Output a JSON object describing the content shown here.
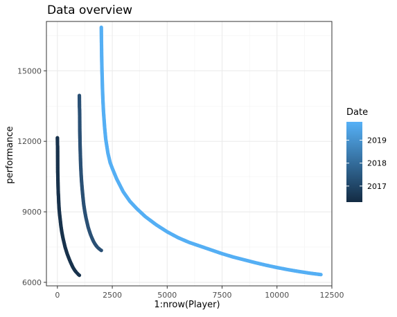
{
  "chart_data": {
    "type": "scatter",
    "title": "Data overview",
    "xlabel": "1:nrow(Player)",
    "ylabel": "performance",
    "xlim": [
      -500,
      12500
    ],
    "ylim": [
      5850,
      17100
    ],
    "x_ticks": [
      0,
      2500,
      5000,
      7500,
      10000,
      12500
    ],
    "x_tick_labels": [
      "0",
      "2500",
      "5000",
      "7500",
      "10000",
      "12500"
    ],
    "y_ticks": [
      6000,
      9000,
      12000,
      15000
    ],
    "y_tick_labels": [
      "6000",
      "9000",
      "12000",
      "15000"
    ],
    "grid": true,
    "legend": {
      "title": "Date",
      "position": "right",
      "type": "colorbar",
      "min": 2016.3,
      "max": 2019.8,
      "ticks": [
        2017,
        2018,
        2019
      ],
      "tick_labels": [
        "2017",
        "2018",
        "2019"
      ],
      "color_low": "#132b43",
      "color_high": "#56b1f7"
    },
    "series": [
      {
        "date": 2016.5,
        "color": "#18324c",
        "x": [
          0,
          5,
          10,
          15,
          20,
          25,
          30,
          40,
          50,
          60,
          80,
          100,
          130,
          160,
          200,
          250,
          300,
          350,
          400,
          450,
          500,
          550,
          600,
          650,
          700,
          750,
          800,
          850,
          900,
          950,
          1000
        ],
        "y": [
          12150,
          11850,
          11800,
          10700,
          10550,
          10300,
          10100,
          9800,
          9650,
          9400,
          9100,
          8900,
          8650,
          8400,
          8150,
          7900,
          7700,
          7500,
          7350,
          7200,
          7080,
          6960,
          6850,
          6750,
          6650,
          6570,
          6500,
          6440,
          6390,
          6340,
          6300
        ]
      },
      {
        "date": 2017.8,
        "color": "#2a5075",
        "x": [
          1000,
          1005,
          1010,
          1015,
          1020,
          1030,
          1040,
          1050,
          1060,
          1080,
          1100,
          1130,
          1160,
          1200,
          1250,
          1300,
          1350,
          1400,
          1450,
          1500,
          1550,
          1600,
          1650,
          1700,
          1750,
          1800,
          1850,
          1900,
          1950,
          2000
        ],
        "y": [
          13950,
          13450,
          13350,
          13100,
          12450,
          11950,
          11600,
          11300,
          11000,
          10600,
          10300,
          9950,
          9650,
          9300,
          9000,
          8750,
          8550,
          8350,
          8200,
          8060,
          7940,
          7830,
          7730,
          7650,
          7580,
          7520,
          7470,
          7430,
          7390,
          7360
        ]
      },
      {
        "date": 2019.7,
        "color": "#55aff4",
        "x": [
          2000,
          2005,
          2010,
          2015,
          2020,
          2030,
          2040,
          2050,
          2075,
          2100,
          2150,
          2200,
          2300,
          2400,
          2500,
          2700,
          3000,
          3300,
          3600,
          4000,
          4500,
          5000,
          5500,
          6000,
          6500,
          7000,
          7500,
          8000,
          8500,
          9000,
          9500,
          10000,
          10500,
          11000,
          11500,
          12000
        ],
        "y": [
          16850,
          16300,
          16050,
          15650,
          15400,
          15000,
          14700,
          14300,
          13700,
          13250,
          12600,
          12100,
          11500,
          11100,
          10850,
          10400,
          9850,
          9450,
          9150,
          8800,
          8450,
          8150,
          7900,
          7700,
          7540,
          7380,
          7220,
          7080,
          6960,
          6840,
          6730,
          6630,
          6540,
          6460,
          6390,
          6330
        ]
      }
    ]
  }
}
